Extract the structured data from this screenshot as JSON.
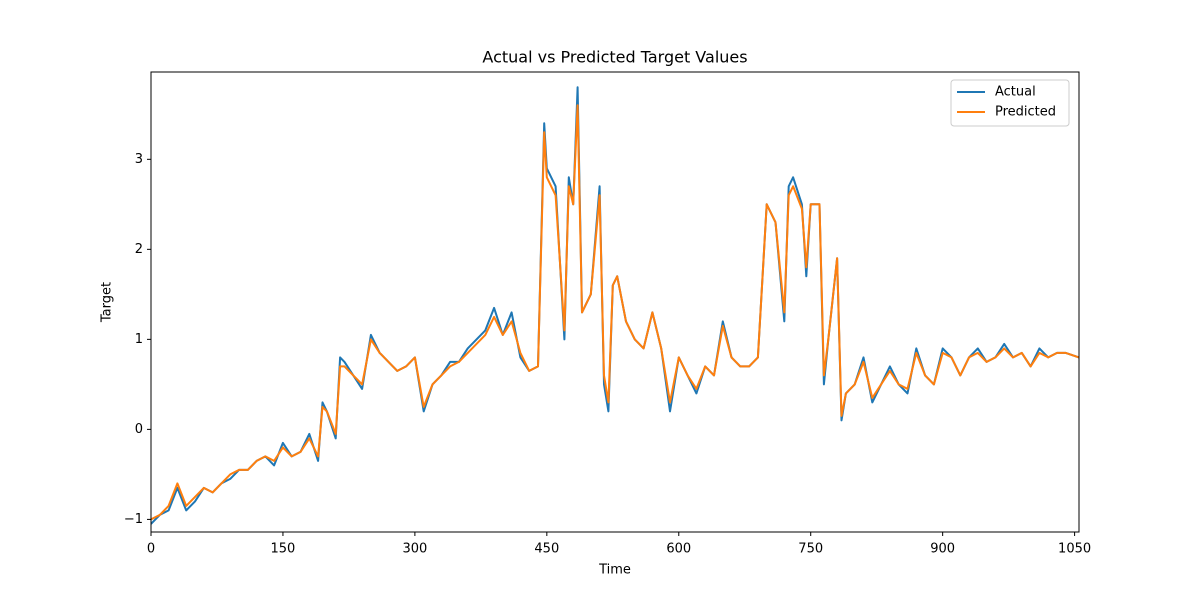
{
  "chart_data": {
    "type": "line",
    "title": "Actual vs Predicted Target Values",
    "xlabel": "Time",
    "ylabel": "Target",
    "x": [
      0,
      10,
      20,
      30,
      40,
      50,
      60,
      70,
      80,
      90,
      100,
      110,
      120,
      130,
      140,
      150,
      160,
      170,
      180,
      190,
      195,
      200,
      210,
      215,
      220,
      230,
      240,
      250,
      260,
      270,
      280,
      290,
      300,
      310,
      320,
      330,
      340,
      350,
      360,
      370,
      380,
      390,
      400,
      410,
      420,
      430,
      440,
      447,
      450,
      460,
      470,
      475,
      480,
      485,
      490,
      500,
      510,
      515,
      520,
      525,
      530,
      540,
      550,
      560,
      570,
      580,
      590,
      600,
      610,
      620,
      630,
      640,
      650,
      660,
      670,
      680,
      690,
      700,
      710,
      720,
      725,
      730,
      740,
      745,
      750,
      760,
      765,
      770,
      780,
      785,
      790,
      800,
      810,
      820,
      830,
      840,
      850,
      860,
      870,
      880,
      890,
      900,
      910,
      920,
      930,
      940,
      950,
      960,
      970,
      980,
      990,
      1000,
      1010,
      1020,
      1030,
      1040,
      1055
    ],
    "series": [
      {
        "name": "Actual",
        "color": "#1f77b4",
        "values": [
          -1.05,
          -0.95,
          -0.9,
          -0.65,
          -0.9,
          -0.8,
          -0.65,
          -0.7,
          -0.6,
          -0.55,
          -0.45,
          -0.45,
          -0.35,
          -0.3,
          -0.4,
          -0.15,
          -0.3,
          -0.25,
          -0.05,
          -0.35,
          0.3,
          0.2,
          -0.1,
          0.8,
          0.75,
          0.6,
          0.45,
          1.05,
          0.85,
          0.75,
          0.65,
          0.7,
          0.8,
          0.2,
          0.5,
          0.6,
          0.75,
          0.75,
          0.9,
          1.0,
          1.1,
          1.35,
          1.05,
          1.3,
          0.8,
          0.65,
          0.7,
          3.4,
          2.9,
          2.7,
          1.0,
          2.8,
          2.5,
          3.8,
          1.3,
          1.5,
          2.7,
          0.5,
          0.2,
          1.6,
          1.7,
          1.2,
          1.0,
          0.9,
          1.3,
          0.9,
          0.2,
          0.8,
          0.6,
          0.4,
          0.7,
          0.6,
          1.2,
          0.8,
          0.7,
          0.7,
          0.8,
          2.5,
          2.3,
          1.2,
          2.7,
          2.8,
          2.5,
          1.7,
          2.5,
          2.5,
          0.5,
          1.0,
          1.9,
          0.1,
          0.4,
          0.5,
          0.8,
          0.3,
          0.5,
          0.7,
          0.5,
          0.4,
          0.9,
          0.6,
          0.5,
          0.9,
          0.8,
          0.6,
          0.8,
          0.9,
          0.75,
          0.8,
          0.95,
          0.8,
          0.85,
          0.7,
          0.9,
          0.8,
          0.85,
          0.85,
          0.8
        ]
      },
      {
        "name": "Predicted",
        "color": "#ff7f0e",
        "values": [
          -1.0,
          -0.95,
          -0.85,
          -0.6,
          -0.85,
          -0.75,
          -0.65,
          -0.7,
          -0.6,
          -0.5,
          -0.45,
          -0.45,
          -0.35,
          -0.3,
          -0.35,
          -0.2,
          -0.3,
          -0.25,
          -0.1,
          -0.3,
          0.25,
          0.2,
          -0.05,
          0.7,
          0.7,
          0.6,
          0.5,
          1.0,
          0.85,
          0.75,
          0.65,
          0.7,
          0.8,
          0.25,
          0.5,
          0.6,
          0.7,
          0.75,
          0.85,
          0.95,
          1.05,
          1.25,
          1.05,
          1.2,
          0.85,
          0.65,
          0.7,
          3.3,
          2.8,
          2.6,
          1.1,
          2.7,
          2.5,
          3.6,
          1.3,
          1.5,
          2.6,
          0.6,
          0.3,
          1.6,
          1.7,
          1.2,
          1.0,
          0.9,
          1.3,
          0.9,
          0.3,
          0.8,
          0.6,
          0.45,
          0.7,
          0.6,
          1.15,
          0.8,
          0.7,
          0.7,
          0.8,
          2.5,
          2.3,
          1.3,
          2.6,
          2.7,
          2.45,
          1.8,
          2.5,
          2.5,
          0.6,
          1.0,
          1.9,
          0.15,
          0.4,
          0.5,
          0.75,
          0.35,
          0.5,
          0.65,
          0.5,
          0.45,
          0.85,
          0.6,
          0.5,
          0.85,
          0.8,
          0.6,
          0.8,
          0.85,
          0.75,
          0.8,
          0.9,
          0.8,
          0.85,
          0.7,
          0.85,
          0.8,
          0.85,
          0.85,
          0.8
        ]
      }
    ],
    "xlim": [
      0,
      1055
    ],
    "ylim": [
      -1.14,
      3.97
    ],
    "xticks": [
      0,
      150,
      300,
      450,
      600,
      750,
      900,
      1050
    ],
    "yticks": [
      {
        "value": -1,
        "label": "−1"
      },
      0,
      1,
      2,
      3
    ],
    "legend": "upper right"
  }
}
